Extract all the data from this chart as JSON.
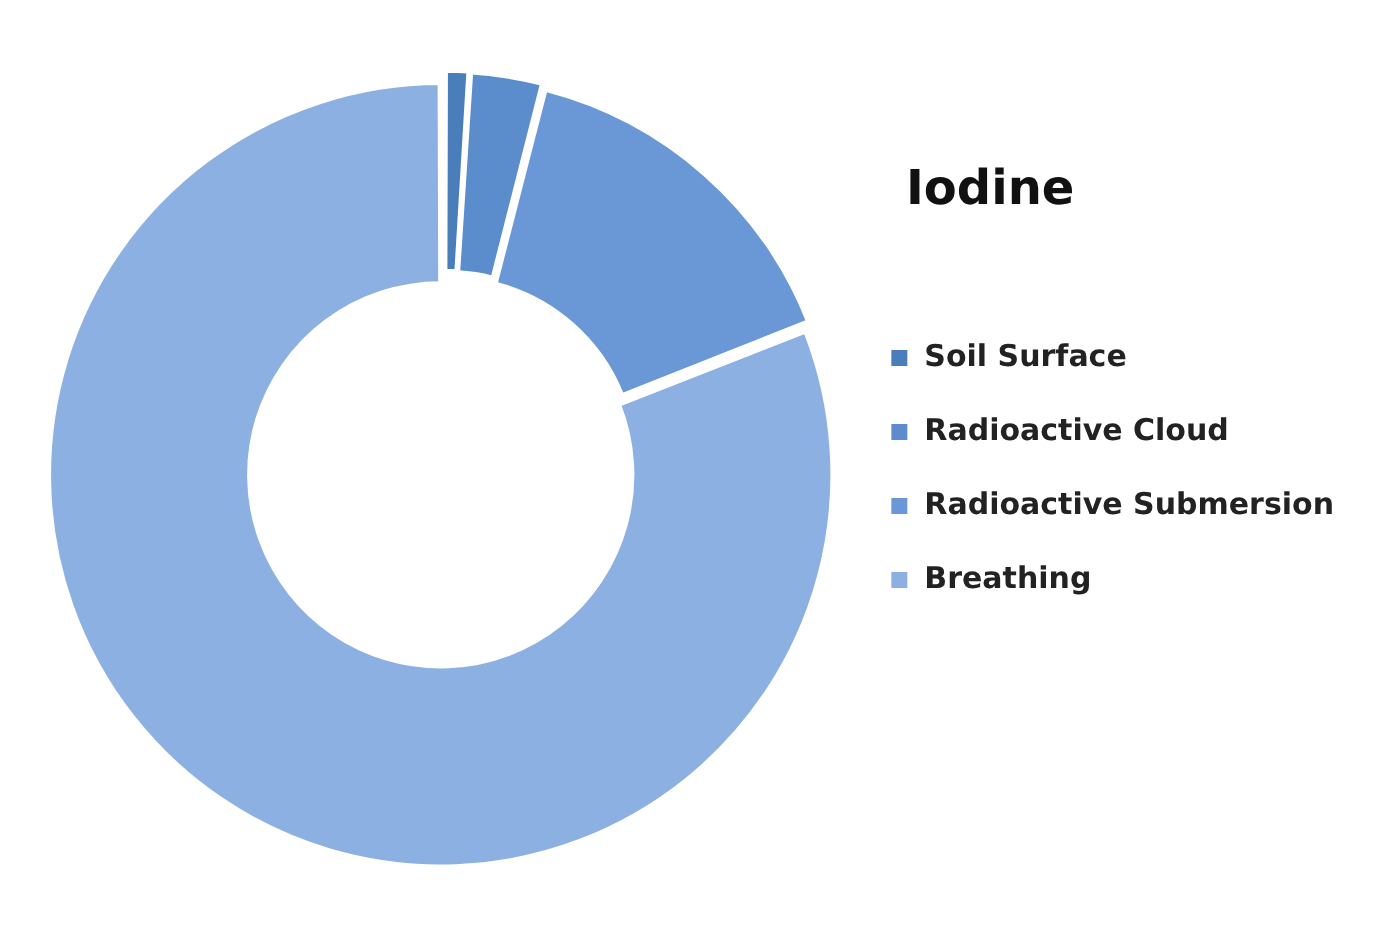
{
  "chart_data": {
    "type": "donut",
    "title": "Iodine",
    "categories": [
      "Soil Surface",
      "Radioactive Cloud",
      "Radioactive Submersion",
      "Breathing"
    ],
    "values": [
      1,
      3,
      15,
      81
    ],
    "colors": [
      "#4a7ebb",
      "#5b8ccc",
      "#6a98d6",
      "#8cb0e2"
    ],
    "legend": "right"
  }
}
